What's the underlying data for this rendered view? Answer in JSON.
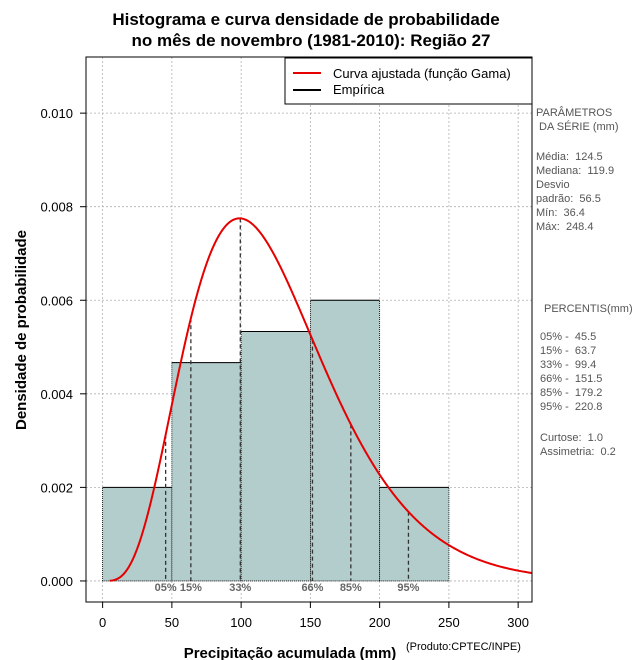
{
  "chart_data": {
    "type": "histogram",
    "title_line1": "Histograma e curva densidade de probabilidade",
    "title_line2": "no mês de novembro (1981-2010): Região 27",
    "xlabel": "Precipitação acumulada (mm)",
    "ylabel": "Densidade de probabilidade",
    "xlim": [
      -12,
      310
    ],
    "ylim": [
      -0.00045,
      0.0112
    ],
    "x_ticks": [
      0,
      50,
      100,
      150,
      200,
      250,
      300
    ],
    "y_ticks": [
      0.0,
      0.002,
      0.004,
      0.006,
      0.008,
      0.01
    ],
    "y_tick_labels": [
      "0.000",
      "0.002",
      "0.004",
      "0.006",
      "0.008",
      "0.010"
    ],
    "grid": true,
    "bins": [
      {
        "x0": 0,
        "x1": 50,
        "density": 0.002
      },
      {
        "x0": 50,
        "x1": 100,
        "density": 0.004667
      },
      {
        "x0": 100,
        "x1": 150,
        "density": 0.005333
      },
      {
        "x0": 150,
        "x1": 200,
        "density": 0.006
      },
      {
        "x0": 200,
        "x1": 250,
        "density": 0.002
      }
    ],
    "gamma_fit": {
      "shape": 4.85,
      "scale": 25.67,
      "x_start": 5,
      "x_end": 312
    },
    "bar_color": "#b3cccc",
    "curve_color": "#e60000",
    "legend": [
      {
        "label": "Curva ajustada (função Gama)",
        "color": "#e60000"
      },
      {
        "label": "Empírica",
        "color": "#000000"
      }
    ],
    "legend_position": "top-right",
    "percentile_markers": [
      {
        "label": "05%",
        "value": 45.5
      },
      {
        "label": "15%",
        "value": 63.7
      },
      {
        "label": "33%",
        "value": 99.4
      },
      {
        "label": "66%",
        "value": 151.5
      },
      {
        "label": "85%",
        "value": 179.2
      },
      {
        "label": "95%",
        "value": 220.8
      }
    ]
  },
  "side_panel": {
    "params_title": "PARÂMETROS\n DA SÉRIE (mm)",
    "params_body": "Média:  124.5\nMediana:  119.9\nDesvio\npadrão:  56.5\nMín:  36.4\nMáx:  248.4",
    "percentis_title": "PERCENTIS(mm)",
    "percentis_body": "05% -  45.5\n15% -  63.7\n33% -  99.4\n66% -  151.5\n85% -  179.2\n95% -  220.8",
    "extra_body": "Curtose:  1.0\nAssimetria:  0.2"
  },
  "credit": "(Produto:CPTEC/INPE)"
}
